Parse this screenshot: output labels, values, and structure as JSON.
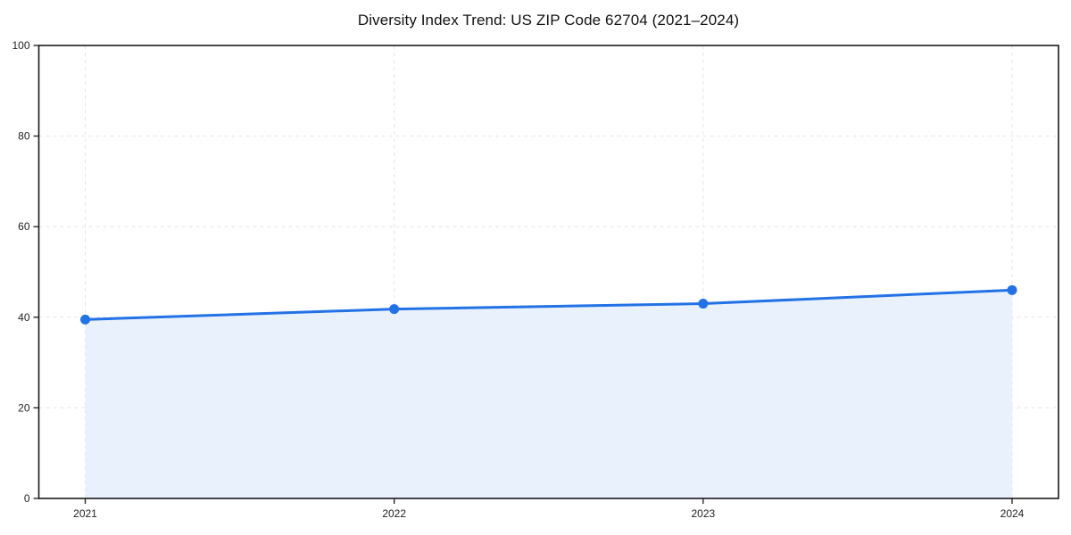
{
  "chart_data": {
    "type": "area",
    "title": "Diversity Index Trend: US ZIP Code 62704 (2021–2024)",
    "categories": [
      "2021",
      "2022",
      "2023",
      "2024"
    ],
    "series": [
      {
        "name": "Diversity Index",
        "values": [
          39.5,
          41.8,
          43.0,
          46.0
        ]
      }
    ],
    "xlabel": "",
    "ylabel": "",
    "ylim": [
      0,
      100
    ],
    "yticks": [
      0,
      20,
      40,
      60,
      80,
      100
    ],
    "grid": "dashed, horizontal and vertical at ticks",
    "legend": "none",
    "colors": {
      "line": "#2272e6",
      "marker": "#2272e6",
      "fill": "#e9f1fc",
      "grid": "#e4e4e4",
      "spine": "#1a1a1a",
      "tick_text": "#222222",
      "background": "#ffffff"
    }
  }
}
